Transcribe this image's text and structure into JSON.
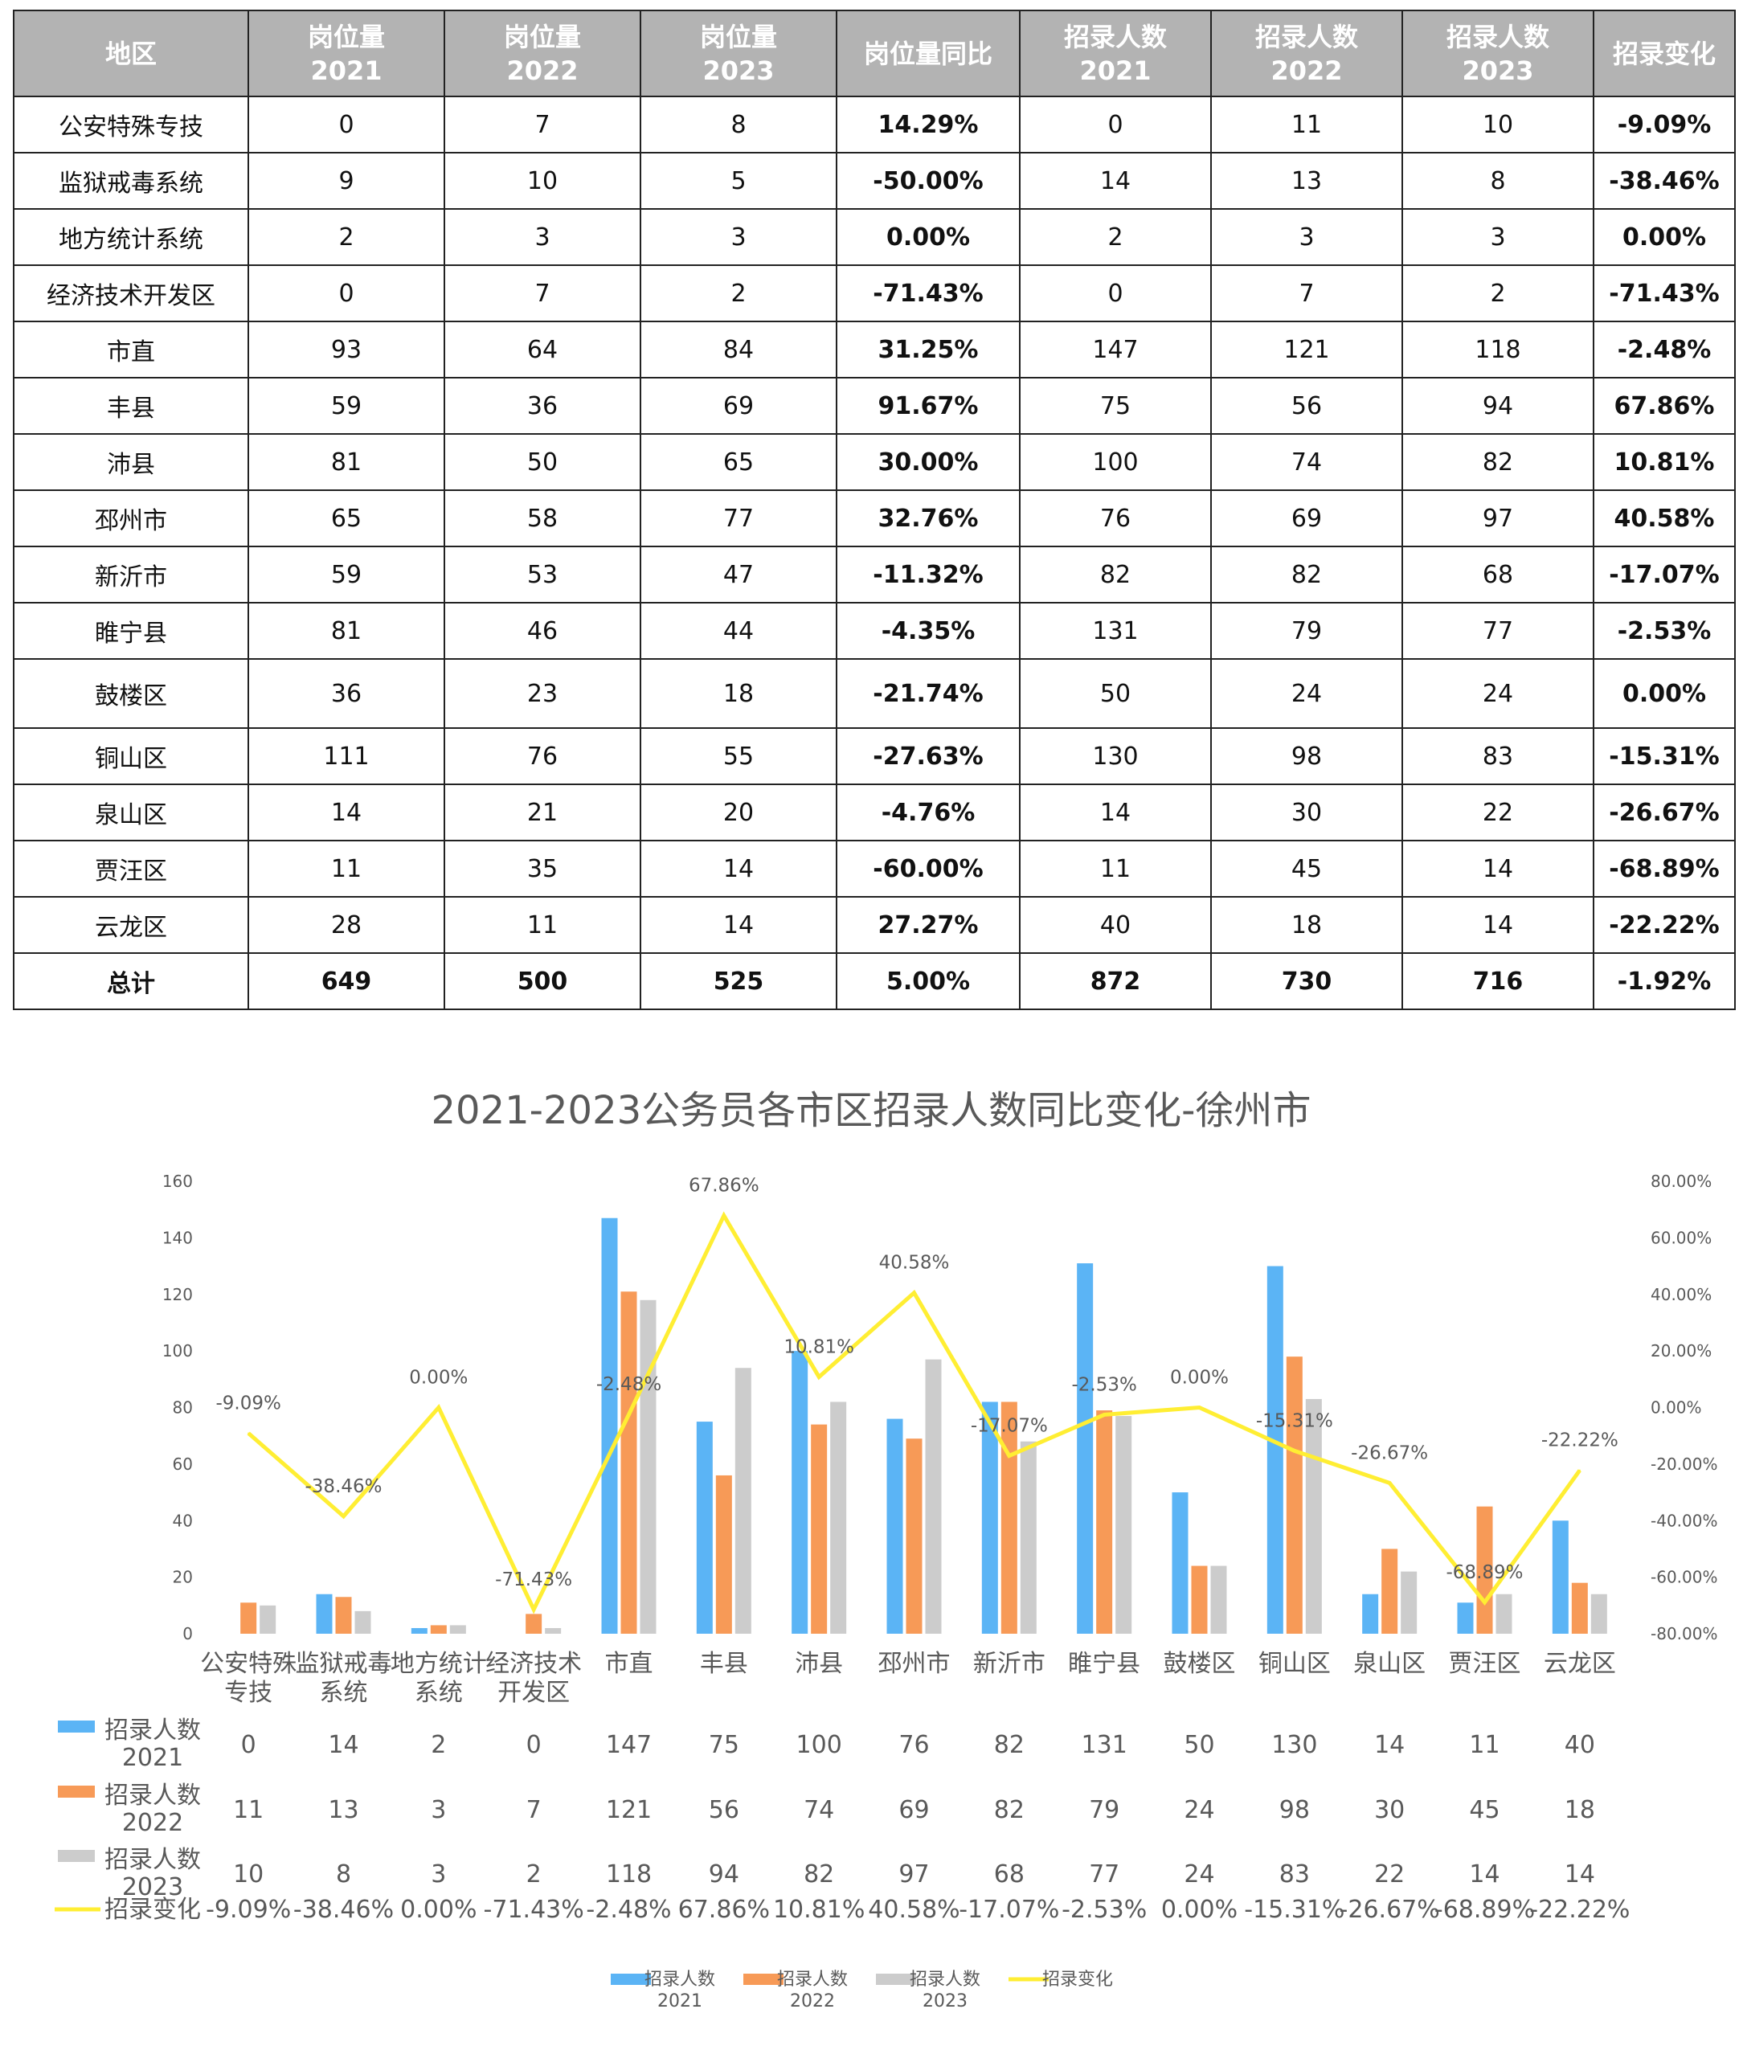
{
  "table": {
    "headers": [
      "地区",
      "岗位量\n2021",
      "岗位量\n2022",
      "岗位量\n2023",
      "岗位量同比",
      "招录人数\n2021",
      "招录人数\n2022",
      "招录人数\n2023",
      "招录变化"
    ],
    "rows": [
      [
        "公安特殊专技",
        "0",
        "7",
        "8",
        "14.29%",
        "0",
        "11",
        "10",
        "-9.09%"
      ],
      [
        "监狱戒毒系统",
        "9",
        "10",
        "5",
        "-50.00%",
        "14",
        "13",
        "8",
        "-38.46%"
      ],
      [
        "地方统计系统",
        "2",
        "3",
        "3",
        "0.00%",
        "2",
        "3",
        "3",
        "0.00%"
      ],
      [
        "经济技术开发区",
        "0",
        "7",
        "2",
        "-71.43%",
        "0",
        "7",
        "2",
        "-71.43%"
      ],
      [
        "市直",
        "93",
        "64",
        "84",
        "31.25%",
        "147",
        "121",
        "118",
        "-2.48%"
      ],
      [
        "丰县",
        "59",
        "36",
        "69",
        "91.67%",
        "75",
        "56",
        "94",
        "67.86%"
      ],
      [
        "沛县",
        "81",
        "50",
        "65",
        "30.00%",
        "100",
        "74",
        "82",
        "10.81%"
      ],
      [
        "邳州市",
        "65",
        "58",
        "77",
        "32.76%",
        "76",
        "69",
        "97",
        "40.58%"
      ],
      [
        "新沂市",
        "59",
        "53",
        "47",
        "-11.32%",
        "82",
        "82",
        "68",
        "-17.07%"
      ],
      [
        "睢宁县",
        "81",
        "46",
        "44",
        "-4.35%",
        "131",
        "79",
        "77",
        "-2.53%"
      ],
      [
        "鼓楼区",
        "36",
        "23",
        "18",
        "-21.74%",
        "50",
        "24",
        "24",
        "0.00%"
      ],
      [
        "铜山区",
        "111",
        "76",
        "55",
        "-27.63%",
        "130",
        "98",
        "83",
        "-15.31%"
      ],
      [
        "泉山区",
        "14",
        "21",
        "20",
        "-4.76%",
        "14",
        "30",
        "22",
        "-26.67%"
      ],
      [
        "贾汪区",
        "11",
        "35",
        "14",
        "-60.00%",
        "11",
        "45",
        "14",
        "-68.89%"
      ],
      [
        "云龙区",
        "28",
        "11",
        "14",
        "27.27%",
        "40",
        "18",
        "14",
        "-22.22%"
      ],
      [
        "总计",
        "649",
        "500",
        "525",
        "5.00%",
        "872",
        "730",
        "716",
        "-1.92%"
      ]
    ]
  },
  "chart_data": {
    "type": "bar",
    "title": "2021-2023公务员各市区招录人数同比变化-徐州市",
    "categories": [
      "公安特殊\n专技",
      "监狱戒毒\n系统",
      "地方统计\n系统",
      "经济技术\n开发区",
      "市直",
      "丰县",
      "沛县",
      "邳州市",
      "新沂市",
      "睢宁县",
      "鼓楼区",
      "铜山区",
      "泉山区",
      "贾汪区",
      "云龙区"
    ],
    "series": [
      {
        "name": "招录人数\n2021",
        "kind": "bar",
        "color": "#5bb4f5",
        "values": [
          0,
          14,
          2,
          0,
          147,
          75,
          100,
          76,
          82,
          131,
          50,
          130,
          14,
          11,
          40
        ]
      },
      {
        "name": "招录人数\n2022",
        "kind": "bar",
        "color": "#f79a57",
        "values": [
          11,
          13,
          3,
          7,
          121,
          56,
          74,
          69,
          82,
          79,
          24,
          98,
          30,
          45,
          18
        ]
      },
      {
        "name": "招录人数\n2023",
        "kind": "bar",
        "color": "#cccccc",
        "values": [
          10,
          8,
          3,
          2,
          118,
          94,
          82,
          97,
          68,
          77,
          24,
          83,
          22,
          14,
          14
        ]
      },
      {
        "name": "招录变化",
        "kind": "line",
        "axis": "right",
        "color": "#ffee33",
        "values": [
          -9.09,
          -38.46,
          0.0,
          -71.43,
          -2.48,
          67.86,
          10.81,
          40.58,
          -17.07,
          -2.53,
          0.0,
          -15.31,
          -26.67,
          -68.89,
          -22.22
        ]
      }
    ],
    "y_left": {
      "min": 0,
      "max": 160,
      "step": 20,
      "ticks": [
        "0",
        "20",
        "40",
        "60",
        "80",
        "100",
        "120",
        "140",
        "160"
      ]
    },
    "y_right": {
      "min": -80,
      "max": 80,
      "step": 20,
      "ticks": [
        "-80.00%",
        "-60.00%",
        "-40.00%",
        "-20.00%",
        "0.00%",
        "20.00%",
        "40.00%",
        "60.00%",
        "80.00%"
      ]
    },
    "line_labels": [
      "-9.09%",
      "-38.46%",
      "0.00%",
      "-71.43%",
      "-2.48%",
      "67.86%",
      "10.81%",
      "40.58%",
      "-17.07%",
      "-2.53%",
      "0.00%",
      "-15.31%",
      "-26.67%",
      "-68.89%",
      "-22.22%"
    ],
    "data_table": true,
    "legend": "bottom",
    "grid": false
  }
}
